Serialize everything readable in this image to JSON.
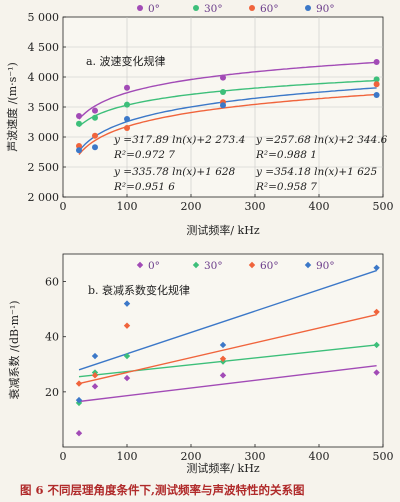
{
  "caption": "图 6   不同层理角度条件下,测试频率与声波特性的关系图",
  "chart_data": [
    {
      "type": "scatter",
      "subtitle": "a. 波速变化规律",
      "xlabel": "测试频率/ kHz",
      "ylabel": "声波速度 /(m·s⁻¹)",
      "xlim": [
        0,
        500
      ],
      "ylim": [
        2000,
        5000
      ],
      "xticks": [
        0,
        100,
        200,
        300,
        400,
        500
      ],
      "yticks": [
        2000,
        2500,
        3000,
        3500,
        4000,
        4500,
        5000
      ],
      "ytick_labels": [
        "2 000",
        "2 500",
        "3 000",
        "3 500",
        "4 000",
        "4 500",
        "5 000"
      ],
      "legend_position": "top",
      "series": [
        {
          "name": "0°",
          "color": "#a24bb6",
          "x": [
            25,
            50,
            100,
            250,
            490
          ],
          "y": [
            3350,
            3440,
            3820,
            3990,
            4250
          ],
          "fit": {
            "type": "log",
            "a": 317.89,
            "b": 2273.4
          }
        },
        {
          "name": "30°",
          "color": "#3dbf7a",
          "x": [
            25,
            50,
            100,
            250,
            490
          ],
          "y": [
            3220,
            3320,
            3540,
            3750,
            3960
          ],
          "fit": {
            "type": "log",
            "a": 257.68,
            "b": 2344.6
          }
        },
        {
          "name": "60°",
          "color": "#f0643c",
          "x": [
            25,
            50,
            100,
            250,
            490
          ],
          "y": [
            2850,
            3020,
            3150,
            3580,
            3880
          ],
          "fit": {
            "type": "log",
            "a": 335.78,
            "b": 1628
          }
        },
        {
          "name": "90°",
          "color": "#3c78c8",
          "x": [
            25,
            50,
            100,
            250,
            490
          ],
          "y": [
            2780,
            2830,
            3300,
            3530,
            3700
          ],
          "fit": {
            "type": "log",
            "a": 354.18,
            "b": 1625
          }
        }
      ],
      "equations": [
        {
          "line1": "y =317.89 ln(x)+2 273.4",
          "line2": "R²=0.972 7"
        },
        {
          "line1": "y =257.68 ln(x)+2 344.6",
          "line2": "R²=0.988 1"
        },
        {
          "line1": "y =335.78 ln(x)+1 628",
          "line2": "R²=0.951 6"
        },
        {
          "line1": "y =354.18 ln(x)+1 625",
          "line2": "R²=0.958 7"
        }
      ]
    },
    {
      "type": "scatter",
      "subtitle": "b. 衰减系数变化规律",
      "xlabel": "测试频率/ kHz",
      "ylabel": "衰减系数 /(dB·m⁻¹)",
      "xlim": [
        0,
        500
      ],
      "ylim": [
        0,
        70
      ],
      "xticks": [
        0,
        100,
        200,
        300,
        400,
        500
      ],
      "yticks": [
        20,
        40,
        60
      ],
      "ytick_labels": [
        "20",
        "40",
        "60"
      ],
      "legend_position": "top",
      "series": [
        {
          "name": "0°",
          "color": "#a24bb6",
          "x": [
            25,
            50,
            100,
            250,
            490
          ],
          "y": [
            5,
            22,
            25,
            26,
            27
          ],
          "fit": {
            "type": "linear",
            "start": 16.5,
            "end": 29.5
          }
        },
        {
          "name": "30°",
          "color": "#3dbf7a",
          "x": [
            25,
            50,
            100,
            250,
            490
          ],
          "y": [
            16,
            27,
            33,
            31,
            37
          ],
          "fit": {
            "type": "linear",
            "start": 25.5,
            "end": 37
          }
        },
        {
          "name": "60°",
          "color": "#f0643c",
          "x": [
            25,
            50,
            100,
            250,
            490
          ],
          "y": [
            23,
            26,
            44,
            32,
            49
          ],
          "fit": {
            "type": "linear",
            "start": 23,
            "end": 48
          }
        },
        {
          "name": "90°",
          "color": "#3c78c8",
          "x": [
            25,
            50,
            100,
            250,
            490
          ],
          "y": [
            17,
            33,
            52,
            37,
            65
          ],
          "fit": {
            "type": "linear",
            "start": 28,
            "end": 64
          }
        }
      ]
    }
  ]
}
